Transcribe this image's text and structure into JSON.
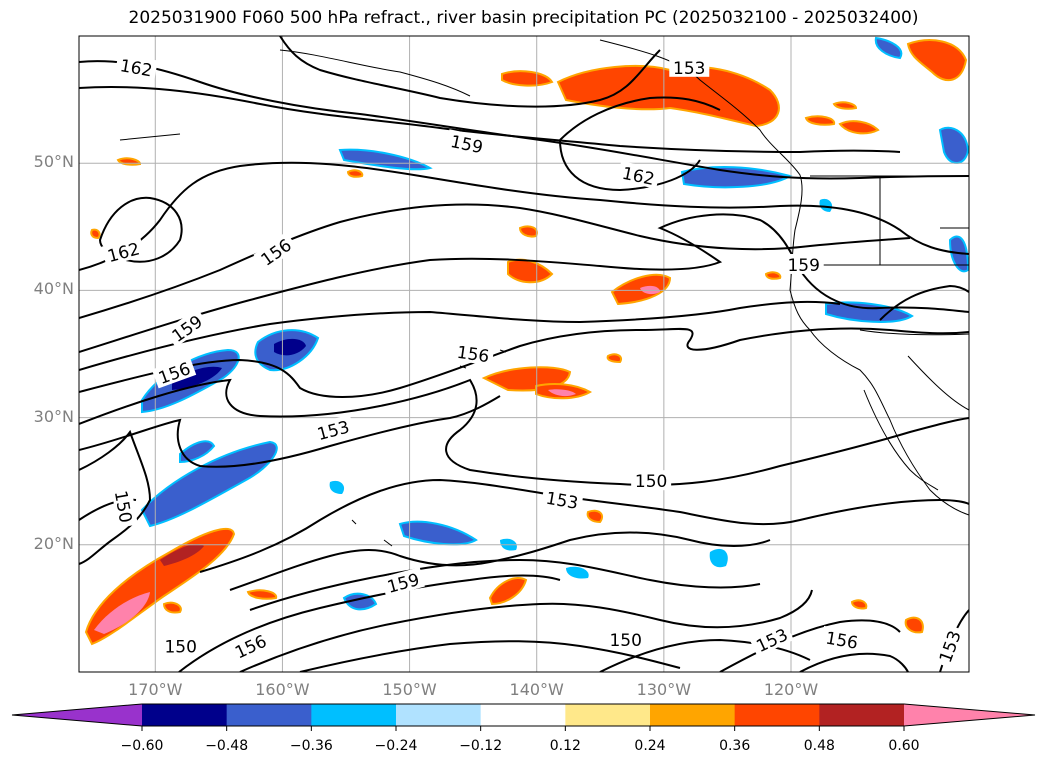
{
  "title": "2025031900 F060 500 hPa refract., river basin precipitation PC (2025032100 - 2025032400)",
  "lat_labels": [
    {
      "text": "50°N",
      "lat": 50
    },
    {
      "text": "40°N",
      "lat": 40
    },
    {
      "text": "30°N",
      "lat": 30
    },
    {
      "text": "20°N",
      "lat": 20
    }
  ],
  "lon_labels": [
    {
      "text": "170°W",
      "lon": -170
    },
    {
      "text": "160°W",
      "lon": -160
    },
    {
      "text": "150°W",
      "lon": -150
    },
    {
      "text": "140°W",
      "lon": -140
    },
    {
      "text": "130°W",
      "lon": -130
    },
    {
      "text": "120°W",
      "lon": -120
    }
  ],
  "map_extent": {
    "lon_min": -176,
    "lon_max": -106,
    "lat_min": 10,
    "lat_max": 60
  },
  "colorbar": {
    "ticks": [
      "−0.60",
      "−0.48",
      "−0.36",
      "−0.24",
      "−0.12",
      "0.12",
      "0.24",
      "0.36",
      "0.48",
      "0.60"
    ],
    "colors": [
      "#9932cc",
      "#00008b",
      "#3a5fcd",
      "#00bfff",
      "#b0e2ff",
      "#ffffff",
      "#ffe88a",
      "#ffa500",
      "#ff4500",
      "#b22222",
      "#ff82ab"
    ],
    "extend": "both"
  },
  "contour_labels": [
    {
      "text": "162",
      "lon": -171.5,
      "lat": 57.5,
      "rot": 10
    },
    {
      "text": "159",
      "lon": -145.5,
      "lat": 51.5,
      "rot": 12
    },
    {
      "text": "162",
      "lon": -132,
      "lat": 49,
      "rot": 12
    },
    {
      "text": "153",
      "lon": -128,
      "lat": 57.5,
      "rot": 0
    },
    {
      "text": "162",
      "lon": -172.5,
      "lat": 43,
      "rot": -15
    },
    {
      "text": "156",
      "lon": -160.5,
      "lat": 43,
      "rot": -35
    },
    {
      "text": "159",
      "lon": -119,
      "lat": 42,
      "rot": 0
    },
    {
      "text": "159",
      "lon": -167.5,
      "lat": 37,
      "rot": -35
    },
    {
      "text": "156",
      "lon": -145,
      "lat": 35,
      "rot": 8
    },
    {
      "text": "156",
      "lon": -168.5,
      "lat": 33.5,
      "rot": -20
    },
    {
      "text": "153",
      "lon": -156,
      "lat": 29,
      "rot": -15
    },
    {
      "text": "150",
      "lon": -172.5,
      "lat": 23,
      "rot": 80
    },
    {
      "text": "150",
      "lon": -131,
      "lat": 25,
      "rot": 0
    },
    {
      "text": "153",
      "lon": -138,
      "lat": 23.5,
      "rot": 10
    },
    {
      "text": "159",
      "lon": -150.5,
      "lat": 17,
      "rot": -15
    },
    {
      "text": "150",
      "lon": -168,
      "lat": 12,
      "rot": 0
    },
    {
      "text": "156",
      "lon": -162.5,
      "lat": 12,
      "rot": -25
    },
    {
      "text": "150",
      "lon": -133,
      "lat": 12.5,
      "rot": 0
    },
    {
      "text": "153",
      "lon": -121.5,
      "lat": 12.5,
      "rot": -25
    },
    {
      "text": "156",
      "lon": -116,
      "lat": 12.5,
      "rot": 10
    },
    {
      "text": "153",
      "lon": -107.5,
      "lat": 12,
      "rot": -70
    }
  ]
}
